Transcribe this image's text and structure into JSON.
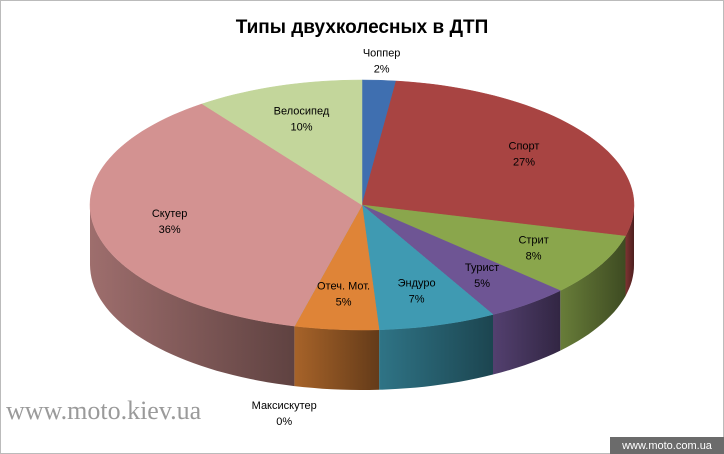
{
  "chart_data": {
    "type": "pie3d",
    "title": "Типы двухколесных в ДТП",
    "categories": [
      "Чоппер",
      "Спорт",
      "Стрит",
      "Турист",
      "Эндуро",
      "Отеч. Мот.",
      "Максискутер",
      "Скутер",
      "Велосипед"
    ],
    "values": [
      2,
      27,
      8,
      5,
      7,
      5,
      0,
      36,
      10
    ],
    "value_labels": [
      "2%",
      "27%",
      "8%",
      "5%",
      "7%",
      "5%",
      "0%",
      "36%",
      "10%"
    ],
    "colors": [
      "#3f6fb0",
      "#a84442",
      "#8aa64c",
      "#6e5594",
      "#3f9ab2",
      "#df8437",
      "#8cb0d8",
      "#d39291",
      "#c3d69b"
    ],
    "watermarks": [
      "www.moto.kiev.ua",
      "www.moto.com.ua"
    ]
  }
}
